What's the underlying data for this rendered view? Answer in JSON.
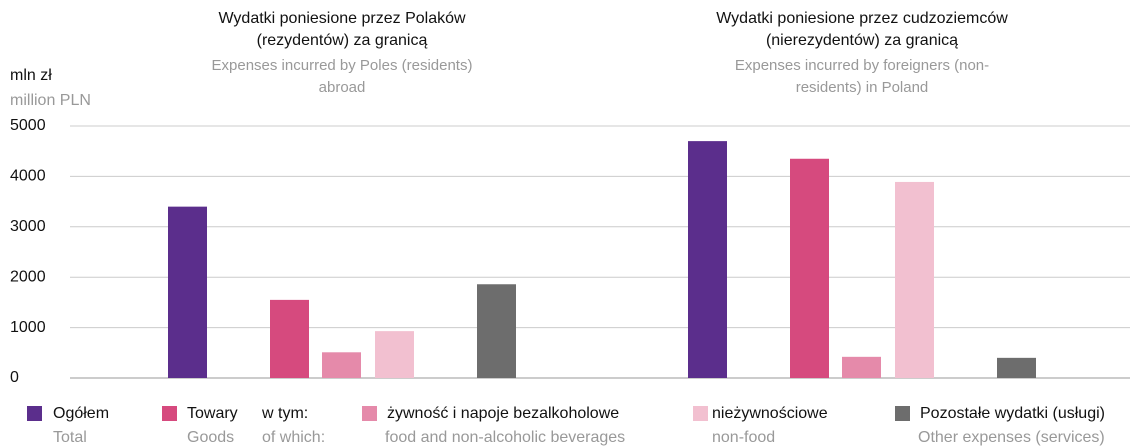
{
  "chart_data": {
    "type": "bar",
    "y_axis_label": "mln zł",
    "y_axis_label_en": "million PLN",
    "categories": [
      "Wydatki poniesione przez Polaków (rezydentów) za granicą",
      "Wydatki poniesione przez cudzoziemców (nierezydentów) za granicą"
    ],
    "categories_en": [
      "Expenses incurred by Poles (residents) abroad",
      "Expenses incurred by foreigners (non-residents) in Poland"
    ],
    "series": [
      {
        "name": "Ogółem",
        "name_en": "Total",
        "color": "#5b2e8c",
        "values": [
          3400,
          4700
        ]
      },
      {
        "name": "Towary",
        "name_en": "Goods",
        "color": "#d64a7e",
        "values": [
          1550,
          4350
        ]
      },
      {
        "name": "żywność  i napoje bezalkoholowe",
        "name_en": "food and non-alcoholic beverages",
        "color": "#e58aaa",
        "values": [
          510,
          420
        ]
      },
      {
        "name": "nieżywnościowe",
        "name_en": "non-food",
        "color": "#f2c0d0",
        "values": [
          930,
          3890
        ]
      },
      {
        "name": "Pozostałe wydatki (usługi)",
        "name_en": "Other expenses (services)",
        "color": "#6d6d6d",
        "values": [
          1860,
          400
        ]
      }
    ],
    "legend_note": "w tym:",
    "legend_note_en": "of which:",
    "ylim": [
      0,
      5000
    ],
    "yticks": [
      0,
      1000,
      2000,
      3000,
      4000,
      5000
    ],
    "grid": true
  }
}
